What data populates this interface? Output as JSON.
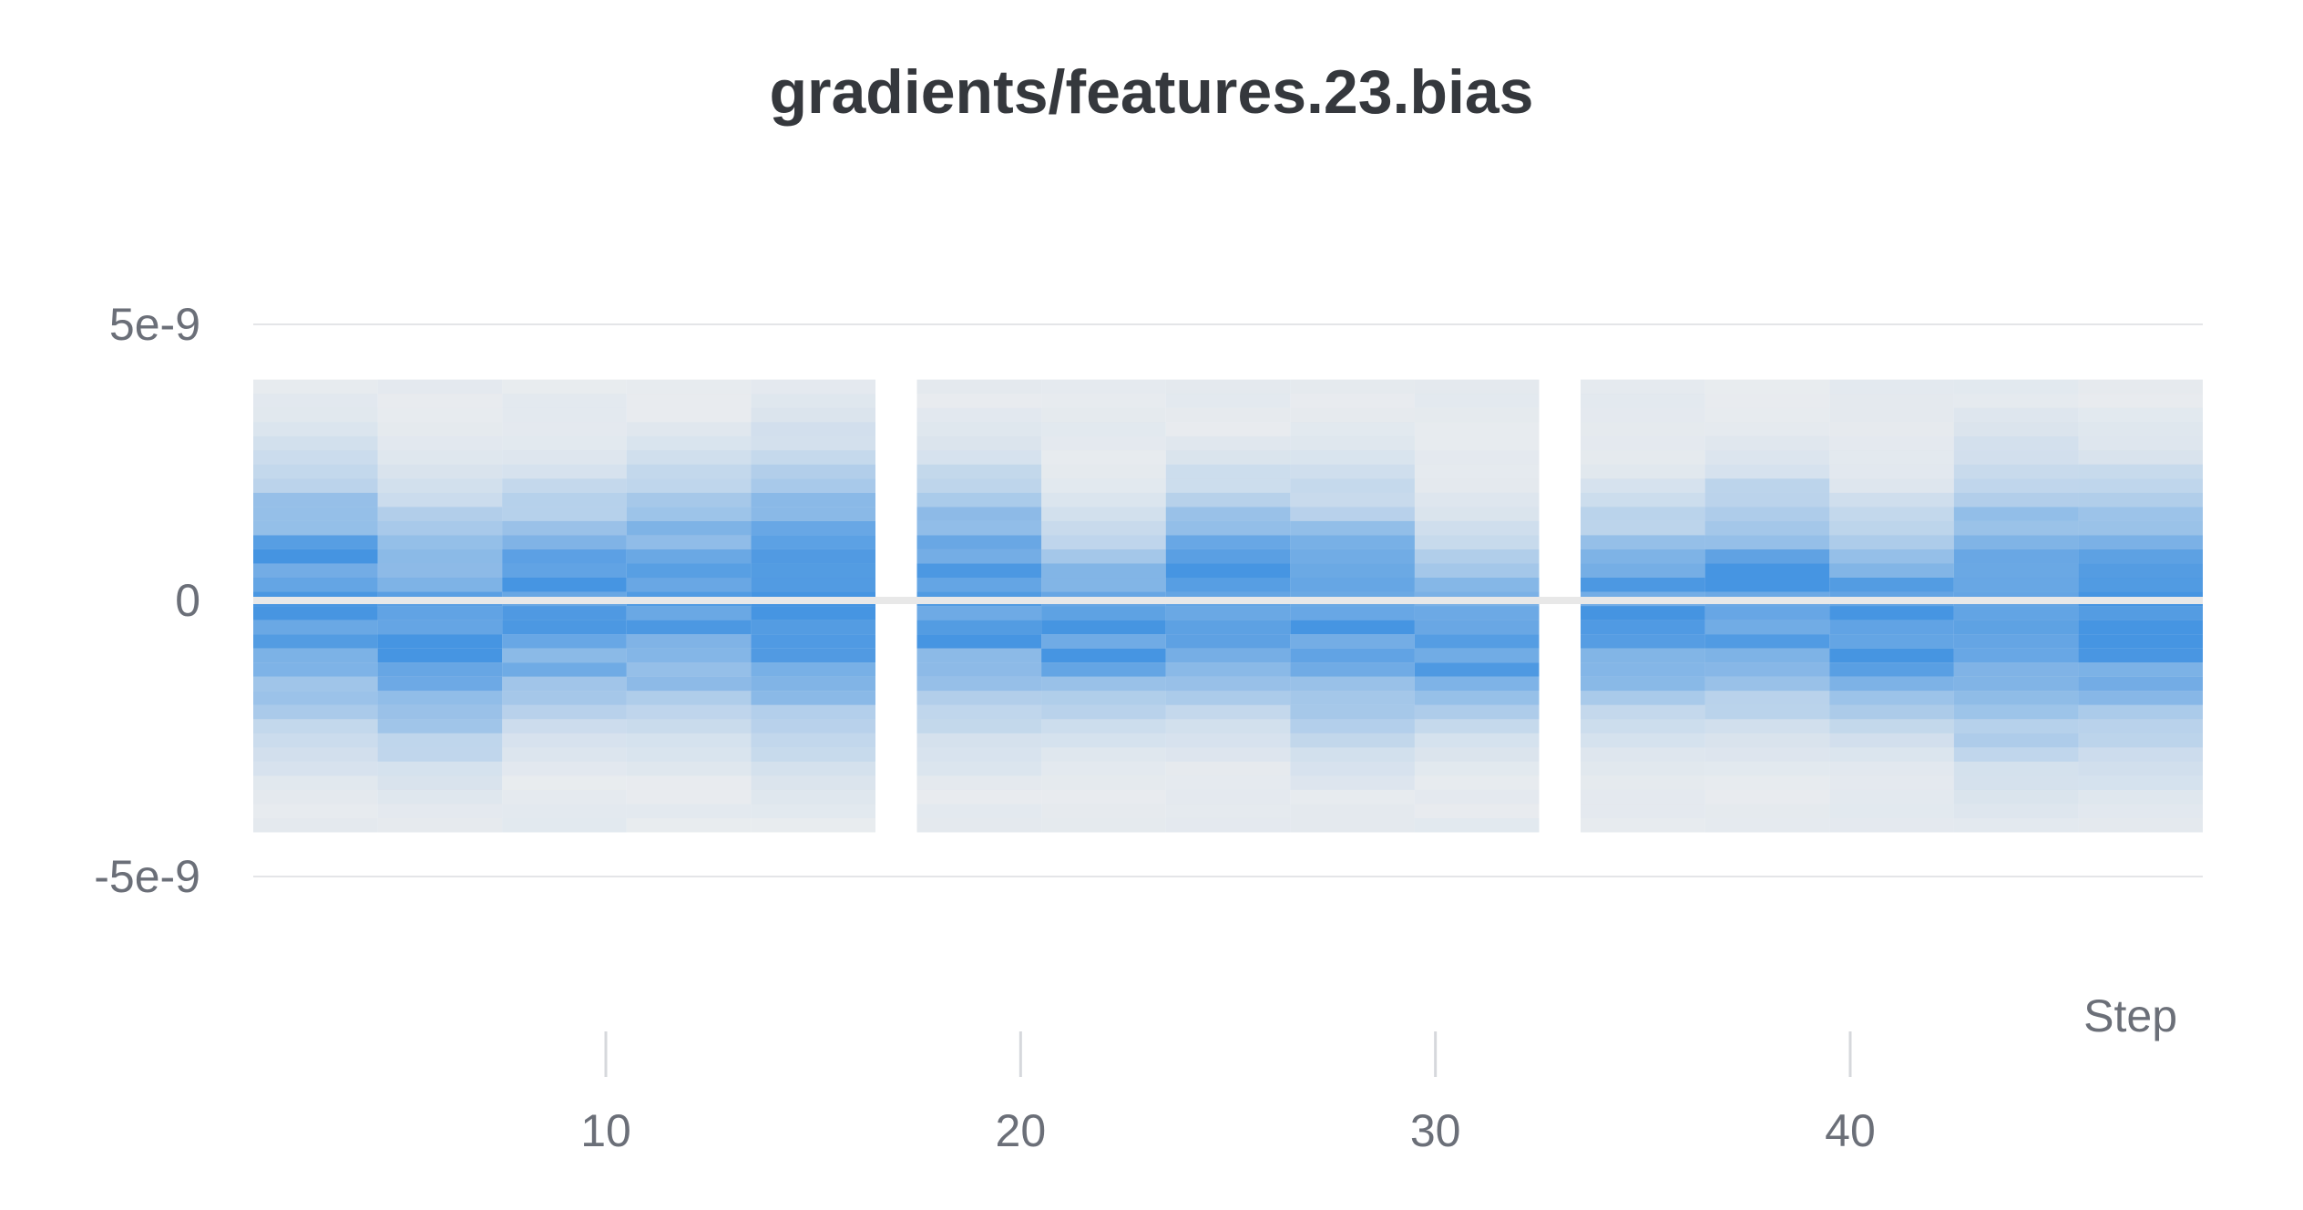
{
  "chart_data": {
    "type": "heatmap",
    "title": "gradients/features.23.bias",
    "xlabel": "Step",
    "ylabel": "",
    "x_ticks": [
      10,
      20,
      30,
      40
    ],
    "y_ticks": [
      {
        "value": 5e-09,
        "label": "5e-9"
      },
      {
        "value": 0,
        "label": "0"
      },
      {
        "value": -5e-09,
        "label": "-5e-9"
      }
    ],
    "xlim": [
      1.5,
      48.5
    ],
    "ylim": [
      -5e-09,
      5e-09
    ],
    "bin_range": [
      -4.2e-09,
      4e-09
    ],
    "num_bins": 32,
    "background_color": "#f0f0f0",
    "cell_color": "#3a8ee0",
    "columns": [
      {
        "x_start": 1.5,
        "x_end": 4.5,
        "center": 0,
        "spread": 1.4e-09
      },
      {
        "x_start": 4.5,
        "x_end": 7.5,
        "center": -5e-10,
        "spread": 1.3e-09
      },
      {
        "x_start": 7.5,
        "x_end": 10.5,
        "center": -1e-10,
        "spread": 1.2e-09
      },
      {
        "x_start": 10.5,
        "x_end": 13.5,
        "center": 0,
        "spread": 1.3e-09
      },
      {
        "x_start": 13.5,
        "x_end": 16.5,
        "center": 0,
        "spread": 1.5e-09
      },
      {
        "x_start": 17.5,
        "x_end": 20.5,
        "center": 0,
        "spread": 1.3e-09
      },
      {
        "x_start": 20.5,
        "x_end": 23.5,
        "center": -5e-10,
        "spread": 1e-09
      },
      {
        "x_start": 23.5,
        "x_end": 26.5,
        "center": 0,
        "spread": 1.2e-09
      },
      {
        "x_start": 26.5,
        "x_end": 29.5,
        "center": -3e-10,
        "spread": 1.3e-09
      },
      {
        "x_start": 29.5,
        "x_end": 32.5,
        "center": -6e-10,
        "spread": 1e-09
      },
      {
        "x_start": 33.5,
        "x_end": 36.5,
        "center": -3e-10,
        "spread": 1.1e-09
      },
      {
        "x_start": 36.5,
        "x_end": 39.5,
        "center": 0,
        "spread": 1.2e-09
      },
      {
        "x_start": 39.5,
        "x_end": 42.5,
        "center": -4e-10,
        "spread": 1.1e-09
      },
      {
        "x_start": 42.5,
        "x_end": 45.5,
        "center": -2e-10,
        "spread": 1.5e-09
      },
      {
        "x_start": 45.5,
        "x_end": 48.5,
        "center": -3e-10,
        "spread": 1.4e-09
      }
    ],
    "gaps": [
      {
        "x_start": 16.5,
        "x_end": 17.5
      },
      {
        "x_start": 32.5,
        "x_end": 33.5
      }
    ]
  }
}
